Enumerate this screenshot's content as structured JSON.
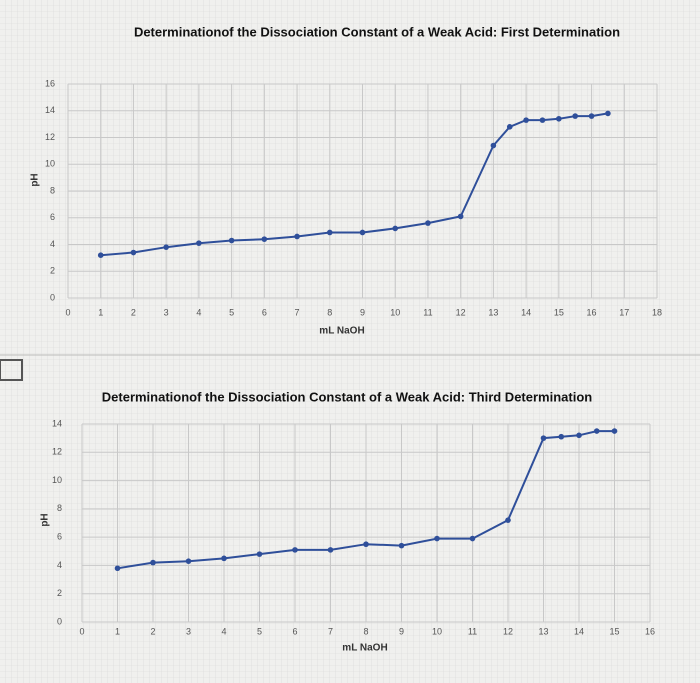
{
  "chart_data": [
    {
      "type": "line",
      "title": "Determinationof the Dissociation Constant of a Weak Acid: First Determination",
      "x_label": "mL NaOH",
      "y_label": "pH",
      "xlim": [
        0,
        18
      ],
      "xticks": [
        0,
        1,
        2,
        3,
        4,
        5,
        6,
        7,
        8,
        9,
        10,
        11,
        12,
        13,
        14,
        15,
        16,
        17,
        18
      ],
      "ylim": [
        0,
        16
      ],
      "yticks": [
        0,
        2,
        4,
        6,
        8,
        10,
        12,
        14,
        16
      ],
      "grid": true,
      "series": [
        {
          "color": "#2f4f9a",
          "x": [
            1,
            2,
            3,
            4,
            5,
            6,
            7,
            8,
            9,
            10,
            11,
            12,
            13,
            13.5,
            14,
            14.5,
            15,
            15.5,
            16,
            16.5
          ],
          "values": [
            3.2,
            3.4,
            3.8,
            4.1,
            4.3,
            4.4,
            4.6,
            4.9,
            4.9,
            5.2,
            5.6,
            6.1,
            11.4,
            12.8,
            13.3,
            13.3,
            13.4,
            13.6,
            13.6,
            13.8
          ]
        }
      ]
    },
    {
      "type": "line",
      "title": "Determinationof the Dissociation Constant of a Weak Acid: Third Determination",
      "x_label": "mL NaOH",
      "y_label": "pH",
      "xlim": [
        0,
        16
      ],
      "xticks": [
        0,
        1,
        2,
        3,
        4,
        5,
        6,
        7,
        8,
        9,
        10,
        11,
        12,
        13,
        14,
        15,
        16
      ],
      "ylim": [
        0,
        14
      ],
      "yticks": [
        0,
        2,
        4,
        6,
        8,
        10,
        12,
        14
      ],
      "grid": true,
      "series": [
        {
          "color": "#2f4f9a",
          "x": [
            1,
            2,
            3,
            4,
            5,
            6,
            7,
            8,
            9,
            10,
            11,
            12,
            13,
            13.5,
            14,
            14.5,
            15
          ],
          "values": [
            3.8,
            4.2,
            4.3,
            4.5,
            4.8,
            5.1,
            5.1,
            5.5,
            5.4,
            5.9,
            5.9,
            7.2,
            13.0,
            13.1,
            13.2,
            13.5,
            13.5
          ]
        }
      ]
    }
  ]
}
